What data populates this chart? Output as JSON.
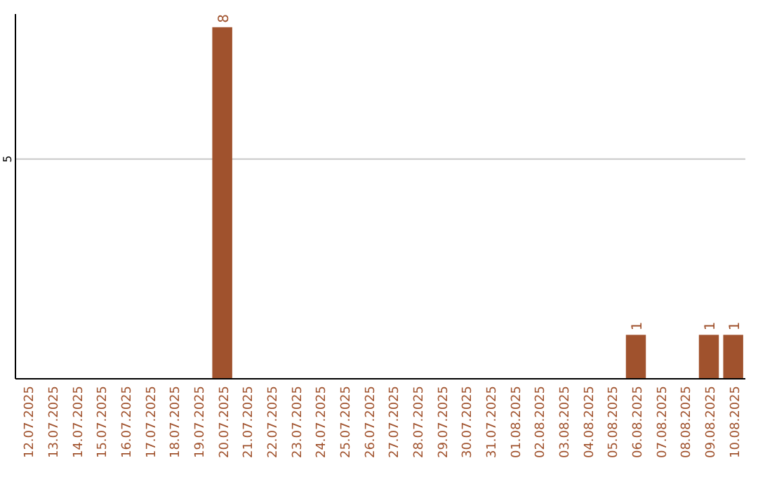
{
  "chart_data": {
    "type": "bar",
    "categories": [
      "12.07.2025",
      "13.07.2025",
      "14.07.2025",
      "15.07.2025",
      "16.07.2025",
      "17.07.2025",
      "18.07.2025",
      "19.07.2025",
      "20.07.2025",
      "21.07.2025",
      "22.07.2025",
      "23.07.2025",
      "24.07.2025",
      "25.07.2025",
      "26.07.2025",
      "27.07.2025",
      "28.07.2025",
      "29.07.2025",
      "30.07.2025",
      "31.07.2025",
      "01.08.2025",
      "02.08.2025",
      "03.08.2025",
      "04.08.2025",
      "05.08.2025",
      "06.08.2025",
      "07.08.2025",
      "08.08.2025",
      "09.08.2025",
      "10.08.2025"
    ],
    "values": [
      0,
      0,
      0,
      0,
      0,
      0,
      0,
      0,
      8,
      0,
      0,
      0,
      0,
      0,
      0,
      0,
      0,
      0,
      0,
      0,
      0,
      0,
      0,
      0,
      0,
      1,
      0,
      0,
      1,
      1
    ],
    "value_labels": [
      null,
      null,
      null,
      null,
      null,
      null,
      null,
      null,
      "8",
      null,
      null,
      null,
      null,
      null,
      null,
      null,
      null,
      null,
      null,
      null,
      null,
      null,
      null,
      null,
      null,
      "1",
      null,
      null,
      "1",
      "1"
    ],
    "color": "#a0522d",
    "ylim": [
      0,
      8.3
    ],
    "yticks": [
      5
    ],
    "grid": "y"
  }
}
